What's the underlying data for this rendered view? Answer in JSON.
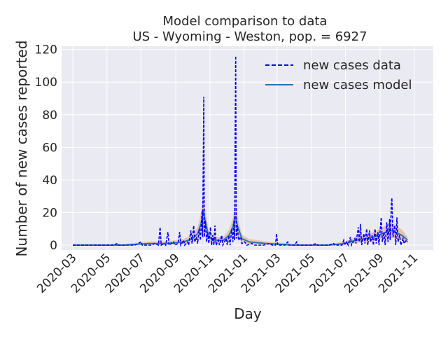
{
  "chart_data": {
    "type": "line",
    "title_line1": "Model comparison to data",
    "title_line2": "US - Wyoming - Weston, pop. = 6927",
    "xlabel": "Day",
    "ylabel": "Number of new cases reported",
    "x_ticks": [
      "2020-03",
      "2020-05",
      "2020-07",
      "2020-09",
      "2020-11",
      "2021-01",
      "2021-03",
      "2021-05",
      "2021-07",
      "2021-09",
      "2021-11"
    ],
    "y_ticks": [
      0,
      20,
      40,
      60,
      80,
      100,
      120
    ],
    "xlim": [
      "2020-02-10",
      "2021-12-05"
    ],
    "ylim": [
      -3,
      122
    ],
    "grid": true,
    "legend_placement": "top-right",
    "legend": [
      {
        "label": "new cases data",
        "style": "dashed",
        "color": "#0000ff"
      },
      {
        "label": "new cases model",
        "style": "solid",
        "color": "#1f77b4"
      }
    ],
    "colors": {
      "background": "#eaeaf2",
      "grid": "#ffffff",
      "data": "#0000ff",
      "model": "#1f77b4",
      "model_band": "#e07b39"
    },
    "series": [
      {
        "name": "new cases data",
        "points": [
          [
            "2020-03-01",
            0
          ],
          [
            "2020-04-01",
            0
          ],
          [
            "2020-05-10",
            0
          ],
          [
            "2020-05-20",
            1
          ],
          [
            "2020-05-22",
            0
          ],
          [
            "2020-06-20",
            0
          ],
          [
            "2020-07-01",
            2
          ],
          [
            "2020-07-03",
            0
          ],
          [
            "2020-07-20",
            0
          ],
          [
            "2020-07-25",
            1
          ],
          [
            "2020-08-01",
            0
          ],
          [
            "2020-08-04",
            11
          ],
          [
            "2020-08-06",
            0
          ],
          [
            "2020-08-12",
            1
          ],
          [
            "2020-08-14",
            0
          ],
          [
            "2020-08-18",
            8
          ],
          [
            "2020-08-20",
            0
          ],
          [
            "2020-08-28",
            2
          ],
          [
            "2020-08-30",
            0
          ],
          [
            "2020-09-05",
            1
          ],
          [
            "2020-09-08",
            8
          ],
          [
            "2020-09-10",
            0
          ],
          [
            "2020-09-15",
            3
          ],
          [
            "2020-09-17",
            0
          ],
          [
            "2020-09-22",
            2
          ],
          [
            "2020-09-24",
            0
          ],
          [
            "2020-09-28",
            9
          ],
          [
            "2020-09-30",
            1
          ],
          [
            "2020-10-03",
            12
          ],
          [
            "2020-10-05",
            2
          ],
          [
            "2020-10-08",
            5
          ],
          [
            "2020-10-10",
            1
          ],
          [
            "2020-10-13",
            10
          ],
          [
            "2020-10-15",
            3
          ],
          [
            "2020-10-18",
            21
          ],
          [
            "2020-10-19",
            5
          ],
          [
            "2020-10-21",
            91
          ],
          [
            "2020-10-22",
            5
          ],
          [
            "2020-10-24",
            15
          ],
          [
            "2020-10-26",
            2
          ],
          [
            "2020-10-28",
            8
          ],
          [
            "2020-10-30",
            1
          ],
          [
            "2020-11-02",
            11
          ],
          [
            "2020-11-04",
            0
          ],
          [
            "2020-11-06",
            6
          ],
          [
            "2020-11-08",
            0
          ],
          [
            "2020-11-10",
            12
          ],
          [
            "2020-11-12",
            0
          ],
          [
            "2020-11-16",
            3
          ],
          [
            "2020-11-18",
            0
          ],
          [
            "2020-11-22",
            6
          ],
          [
            "2020-11-24",
            0
          ],
          [
            "2020-11-27",
            2
          ],
          [
            "2020-11-30",
            4
          ],
          [
            "2020-12-02",
            0
          ],
          [
            "2020-12-05",
            6
          ],
          [
            "2020-12-07",
            0
          ],
          [
            "2020-12-10",
            10
          ],
          [
            "2020-12-12",
            2
          ],
          [
            "2020-12-14",
            15
          ],
          [
            "2020-12-15",
            3
          ],
          [
            "2020-12-17",
            116
          ],
          [
            "2020-12-18",
            4
          ],
          [
            "2020-12-20",
            12
          ],
          [
            "2020-12-22",
            3
          ],
          [
            "2020-12-26",
            5
          ],
          [
            "2020-12-28",
            1
          ],
          [
            "2021-01-02",
            2
          ],
          [
            "2021-01-06",
            0
          ],
          [
            "2021-01-15",
            1
          ],
          [
            "2021-01-20",
            0
          ],
          [
            "2021-02-05",
            0
          ],
          [
            "2021-02-15",
            1
          ],
          [
            "2021-02-20",
            0
          ],
          [
            "2021-02-26",
            0
          ],
          [
            "2021-02-28",
            7
          ],
          [
            "2021-03-02",
            0
          ],
          [
            "2021-03-15",
            0
          ],
          [
            "2021-03-20",
            2
          ],
          [
            "2021-03-22",
            0
          ],
          [
            "2021-04-01",
            0
          ],
          [
            "2021-04-05",
            2
          ],
          [
            "2021-04-07",
            0
          ],
          [
            "2021-05-01",
            0
          ],
          [
            "2021-05-10",
            1
          ],
          [
            "2021-05-12",
            0
          ],
          [
            "2021-06-01",
            0
          ],
          [
            "2021-06-10",
            1
          ],
          [
            "2021-06-12",
            0
          ],
          [
            "2021-06-25",
            0
          ],
          [
            "2021-06-28",
            3
          ],
          [
            "2021-06-30",
            0
          ],
          [
            "2021-07-03",
            2
          ],
          [
            "2021-07-06",
            0
          ],
          [
            "2021-07-10",
            5
          ],
          [
            "2021-07-12",
            0
          ],
          [
            "2021-07-18",
            4
          ],
          [
            "2021-07-20",
            1
          ],
          [
            "2021-07-24",
            11
          ],
          [
            "2021-07-26",
            2
          ],
          [
            "2021-07-28",
            13
          ],
          [
            "2021-07-30",
            0
          ],
          [
            "2021-08-03",
            7
          ],
          [
            "2021-08-05",
            1
          ],
          [
            "2021-08-08",
            10
          ],
          [
            "2021-08-10",
            0
          ],
          [
            "2021-08-13",
            9
          ],
          [
            "2021-08-15",
            2
          ],
          [
            "2021-08-18",
            6
          ],
          [
            "2021-08-20",
            0
          ],
          [
            "2021-08-23",
            10
          ],
          [
            "2021-08-25",
            1
          ],
          [
            "2021-08-28",
            8
          ],
          [
            "2021-08-30",
            0
          ],
          [
            "2021-09-03",
            17
          ],
          [
            "2021-09-05",
            2
          ],
          [
            "2021-09-08",
            8
          ],
          [
            "2021-09-10",
            0
          ],
          [
            "2021-09-13",
            14
          ],
          [
            "2021-09-15",
            2
          ],
          [
            "2021-09-18",
            16
          ],
          [
            "2021-09-19",
            3
          ],
          [
            "2021-09-21",
            24
          ],
          [
            "2021-09-22",
            29
          ],
          [
            "2021-09-24",
            5
          ],
          [
            "2021-09-27",
            12
          ],
          [
            "2021-09-29",
            0
          ],
          [
            "2021-10-01",
            17
          ],
          [
            "2021-10-03",
            2
          ],
          [
            "2021-10-06",
            6
          ],
          [
            "2021-10-08",
            0
          ],
          [
            "2021-10-12",
            4
          ],
          [
            "2021-10-14",
            1
          ],
          [
            "2021-10-18",
            3
          ],
          [
            "2021-10-20",
            2
          ]
        ]
      },
      {
        "name": "new cases model",
        "points": [
          [
            "2020-03-01",
            0
          ],
          [
            "2020-06-01",
            0
          ],
          [
            "2020-07-15",
            1
          ],
          [
            "2020-08-15",
            1
          ],
          [
            "2020-09-15",
            2
          ],
          [
            "2020-10-01",
            4
          ],
          [
            "2020-10-10",
            7
          ],
          [
            "2020-10-16",
            13
          ],
          [
            "2020-10-20",
            21
          ],
          [
            "2020-10-24",
            14
          ],
          [
            "2020-10-30",
            5
          ],
          [
            "2020-11-10",
            3
          ],
          [
            "2020-11-25",
            3
          ],
          [
            "2020-12-05",
            6
          ],
          [
            "2020-12-12",
            11
          ],
          [
            "2020-12-16",
            18
          ],
          [
            "2020-12-20",
            12
          ],
          [
            "2020-12-28",
            4
          ],
          [
            "2021-01-10",
            2
          ],
          [
            "2021-02-10",
            1
          ],
          [
            "2021-04-01",
            0
          ],
          [
            "2021-06-01",
            0
          ],
          [
            "2021-07-01",
            1
          ],
          [
            "2021-07-20",
            3
          ],
          [
            "2021-08-05",
            4
          ],
          [
            "2021-08-20",
            5
          ],
          [
            "2021-09-05",
            7
          ],
          [
            "2021-09-20",
            9
          ],
          [
            "2021-09-28",
            8
          ],
          [
            "2021-10-10",
            6
          ],
          [
            "2021-10-20",
            3
          ]
        ]
      }
    ]
  }
}
